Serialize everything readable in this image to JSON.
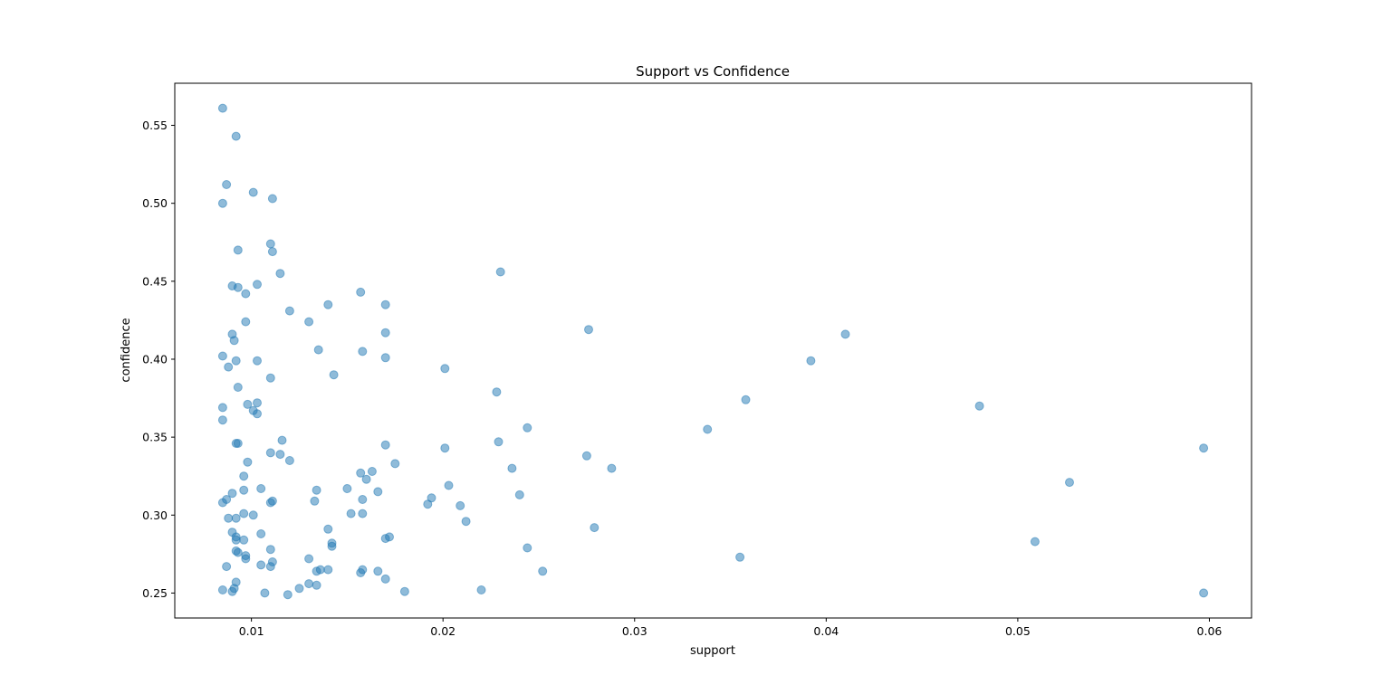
{
  "chart_data": {
    "type": "scatter",
    "title": "Support vs Confidence",
    "xlabel": "support",
    "ylabel": "confidence",
    "xlim": [
      0.006,
      0.0622
    ],
    "ylim": [
      0.234,
      0.577
    ],
    "xticks": [
      0.01,
      0.02,
      0.03,
      0.04,
      0.05,
      0.06
    ],
    "xtick_labels": [
      "0.01",
      "0.02",
      "0.03",
      "0.04",
      "0.05",
      "0.06"
    ],
    "yticks": [
      0.25,
      0.3,
      0.35,
      0.4,
      0.45,
      0.5,
      0.55
    ],
    "ytick_labels": [
      "0.25",
      "0.30",
      "0.35",
      "0.40",
      "0.45",
      "0.50",
      "0.55"
    ],
    "grid": false,
    "marker_color": "#1f77b4",
    "marker_alpha": 0.5,
    "points": [
      [
        0.0085,
        0.561
      ],
      [
        0.0092,
        0.543
      ],
      [
        0.0087,
        0.512
      ],
      [
        0.0101,
        0.507
      ],
      [
        0.0111,
        0.503
      ],
      [
        0.0085,
        0.5
      ],
      [
        0.011,
        0.474
      ],
      [
        0.0111,
        0.469
      ],
      [
        0.0093,
        0.47
      ],
      [
        0.0115,
        0.455
      ],
      [
        0.023,
        0.456
      ],
      [
        0.009,
        0.447
      ],
      [
        0.0093,
        0.446
      ],
      [
        0.0103,
        0.448
      ],
      [
        0.0097,
        0.442
      ],
      [
        0.0157,
        0.443
      ],
      [
        0.014,
        0.435
      ],
      [
        0.017,
        0.435
      ],
      [
        0.012,
        0.431
      ],
      [
        0.013,
        0.424
      ],
      [
        0.0097,
        0.424
      ],
      [
        0.0276,
        0.419
      ],
      [
        0.041,
        0.416
      ],
      [
        0.009,
        0.416
      ],
      [
        0.0091,
        0.412
      ],
      [
        0.017,
        0.417
      ],
      [
        0.0135,
        0.406
      ],
      [
        0.0158,
        0.405
      ],
      [
        0.0085,
        0.402
      ],
      [
        0.017,
        0.401
      ],
      [
        0.0092,
        0.399
      ],
      [
        0.0103,
        0.399
      ],
      [
        0.0392,
        0.399
      ],
      [
        0.0088,
        0.395
      ],
      [
        0.0201,
        0.394
      ],
      [
        0.0143,
        0.39
      ],
      [
        0.011,
        0.388
      ],
      [
        0.0093,
        0.382
      ],
      [
        0.0228,
        0.379
      ],
      [
        0.0358,
        0.374
      ],
      [
        0.0098,
        0.371
      ],
      [
        0.0103,
        0.372
      ],
      [
        0.0085,
        0.369
      ],
      [
        0.048,
        0.37
      ],
      [
        0.0101,
        0.367
      ],
      [
        0.0103,
        0.365
      ],
      [
        0.0085,
        0.361
      ],
      [
        0.0244,
        0.356
      ],
      [
        0.0338,
        0.355
      ],
      [
        0.0116,
        0.348
      ],
      [
        0.0092,
        0.346
      ],
      [
        0.0093,
        0.346
      ],
      [
        0.0229,
        0.347
      ],
      [
        0.017,
        0.345
      ],
      [
        0.0201,
        0.343
      ],
      [
        0.0597,
        0.343
      ],
      [
        0.011,
        0.34
      ],
      [
        0.0115,
        0.339
      ],
      [
        0.0275,
        0.338
      ],
      [
        0.012,
        0.335
      ],
      [
        0.0098,
        0.334
      ],
      [
        0.0175,
        0.333
      ],
      [
        0.0236,
        0.33
      ],
      [
        0.0288,
        0.33
      ],
      [
        0.0157,
        0.327
      ],
      [
        0.0163,
        0.328
      ],
      [
        0.0096,
        0.325
      ],
      [
        0.016,
        0.323
      ],
      [
        0.0527,
        0.321
      ],
      [
        0.0203,
        0.319
      ],
      [
        0.0105,
        0.317
      ],
      [
        0.0134,
        0.316
      ],
      [
        0.015,
        0.317
      ],
      [
        0.0096,
        0.316
      ],
      [
        0.009,
        0.314
      ],
      [
        0.0166,
        0.315
      ],
      [
        0.024,
        0.313
      ],
      [
        0.0194,
        0.311
      ],
      [
        0.0158,
        0.31
      ],
      [
        0.0111,
        0.309
      ],
      [
        0.0087,
        0.31
      ],
      [
        0.0133,
        0.309
      ],
      [
        0.0085,
        0.308
      ],
      [
        0.011,
        0.308
      ],
      [
        0.0192,
        0.307
      ],
      [
        0.0209,
        0.306
      ],
      [
        0.0096,
        0.301
      ],
      [
        0.0152,
        0.301
      ],
      [
        0.0158,
        0.301
      ],
      [
        0.0101,
        0.3
      ],
      [
        0.0088,
        0.298
      ],
      [
        0.0092,
        0.298
      ],
      [
        0.0212,
        0.296
      ],
      [
        0.014,
        0.291
      ],
      [
        0.0279,
        0.292
      ],
      [
        0.009,
        0.289
      ],
      [
        0.0105,
        0.288
      ],
      [
        0.0092,
        0.286
      ],
      [
        0.017,
        0.285
      ],
      [
        0.0172,
        0.286
      ],
      [
        0.0096,
        0.284
      ],
      [
        0.0092,
        0.284
      ],
      [
        0.0509,
        0.283
      ],
      [
        0.0142,
        0.282
      ],
      [
        0.0142,
        0.28
      ],
      [
        0.0244,
        0.279
      ],
      [
        0.011,
        0.278
      ],
      [
        0.0092,
        0.277
      ],
      [
        0.0093,
        0.276
      ],
      [
        0.0097,
        0.274
      ],
      [
        0.0097,
        0.272
      ],
      [
        0.0355,
        0.273
      ],
      [
        0.013,
        0.272
      ],
      [
        0.0111,
        0.27
      ],
      [
        0.0105,
        0.268
      ],
      [
        0.011,
        0.267
      ],
      [
        0.0087,
        0.267
      ],
      [
        0.0136,
        0.265
      ],
      [
        0.014,
        0.265
      ],
      [
        0.0158,
        0.265
      ],
      [
        0.0134,
        0.264
      ],
      [
        0.0166,
        0.264
      ],
      [
        0.0252,
        0.264
      ],
      [
        0.0157,
        0.263
      ],
      [
        0.017,
        0.259
      ],
      [
        0.0092,
        0.257
      ],
      [
        0.013,
        0.256
      ],
      [
        0.0134,
        0.255
      ],
      [
        0.0091,
        0.253
      ],
      [
        0.0125,
        0.253
      ],
      [
        0.0085,
        0.252
      ],
      [
        0.009,
        0.251
      ],
      [
        0.018,
        0.251
      ],
      [
        0.022,
        0.252
      ],
      [
        0.0107,
        0.25
      ],
      [
        0.0119,
        0.249
      ],
      [
        0.0597,
        0.25
      ]
    ]
  }
}
